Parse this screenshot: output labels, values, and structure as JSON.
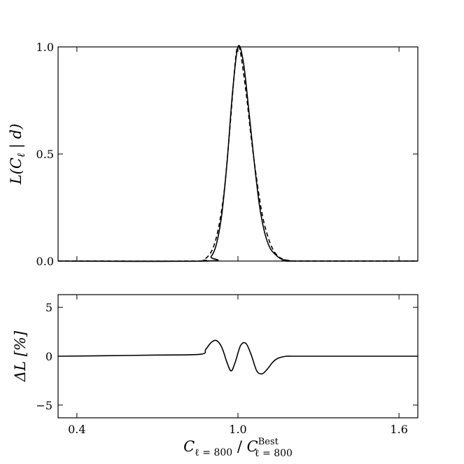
{
  "chart_data": [
    {
      "type": "line",
      "panel": "top",
      "ylabel": {
        "base": "L(C",
        "sub": "ℓ",
        "rest": " | d)"
      },
      "xlim": [
        0.33,
        1.67
      ],
      "ylim": [
        0.0,
        1.0
      ],
      "yticks": [
        "0.0",
        "0.5",
        "1.0"
      ],
      "xticks": [
        "0.4",
        "1.0",
        "1.6"
      ],
      "show_xtick_labels": false,
      "grid": false,
      "series": [
        {
          "style": "solid",
          "x": [
            0.88,
            0.9,
            0.92,
            0.94,
            0.96,
            0.98,
            1.0,
            1.02,
            1.04,
            1.06,
            1.08,
            1.1,
            1.12,
            1.14,
            1.16,
            1.18,
            1.2,
            1.22
          ],
          "y": [
            0.0,
            0.02,
            0.08,
            0.22,
            0.47,
            0.79,
            1.0,
            0.93,
            0.71,
            0.47,
            0.26,
            0.13,
            0.06,
            0.03,
            0.01,
            0.004,
            0.0,
            0.0
          ]
        },
        {
          "style": "dashed",
          "x": [
            0.85,
            0.87,
            0.89,
            0.91,
            0.93,
            0.95,
            0.97,
            0.99,
            1.0,
            1.01,
            1.03,
            1.05,
            1.07,
            1.09,
            1.11,
            1.13,
            1.15,
            1.17,
            1.19,
            1.2
          ],
          "y": [
            0.0,
            0.006,
            0.024,
            0.07,
            0.17,
            0.34,
            0.62,
            0.93,
            1.0,
            0.97,
            0.79,
            0.57,
            0.38,
            0.22,
            0.12,
            0.055,
            0.022,
            0.008,
            0.002,
            0.0
          ]
        }
      ]
    },
    {
      "type": "line",
      "panel": "bottom",
      "ylabel": "ΔL [%]",
      "xlabel": {
        "base": "C",
        "sub1": "ℓ = 800",
        "slash": " / ",
        "base2": "C",
        "sup2": "Best",
        "sub2": "ℓ = 800"
      },
      "xlim": [
        0.33,
        1.67
      ],
      "ylim": [
        -6.3,
        6.3
      ],
      "yticks": [
        "−5",
        "0",
        "5"
      ],
      "ytick_values": [
        -5,
        0,
        5
      ],
      "xticks": [
        "0.4",
        "1.0",
        "1.6"
      ],
      "xtick_values": [
        0.4,
        1.0,
        1.6
      ],
      "grid": false,
      "series": [
        {
          "style": "solid",
          "x": [
            0.33,
            0.5,
            0.7,
            0.86,
            0.88,
            0.9,
            0.92,
            0.94,
            0.96,
            0.975,
            0.99,
            1.01,
            1.03,
            1.05,
            1.07,
            1.09,
            1.11,
            1.13,
            1.15,
            1.18,
            1.2,
            1.3,
            1.5,
            1.67
          ],
          "y": [
            0.0,
            0.05,
            0.12,
            0.2,
            0.7,
            1.4,
            1.6,
            0.9,
            -0.7,
            -1.5,
            -0.6,
            1.1,
            1.3,
            0.1,
            -1.5,
            -1.8,
            -1.3,
            -0.6,
            -0.2,
            0.0,
            0.0,
            0.0,
            0.0,
            0.0
          ]
        }
      ]
    }
  ]
}
